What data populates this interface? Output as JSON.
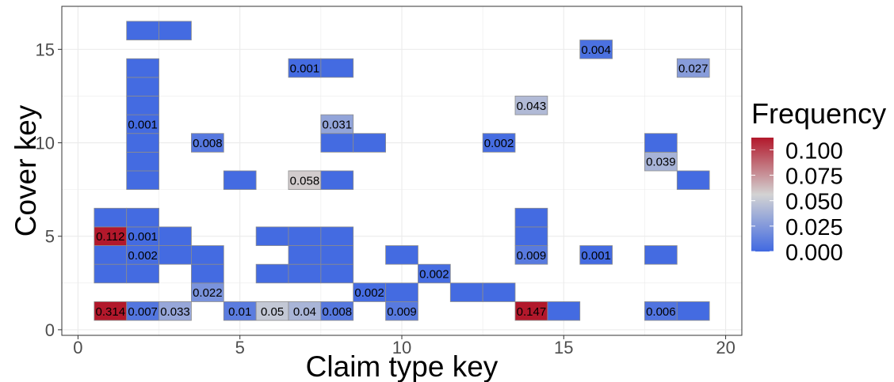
{
  "chart_data": {
    "type": "heatmap",
    "xlabel": "Claim type key",
    "ylabel": "Cover key",
    "xlim": [
      -0.5,
      20.5
    ],
    "ylim": [
      -0.3,
      17.3
    ],
    "x_ticks": [
      0,
      5,
      10,
      15,
      20
    ],
    "y_ticks": [
      0,
      5,
      10,
      15
    ],
    "grid": true,
    "legend": {
      "title": "Frequency",
      "position": "right",
      "ticks": [
        "0.100",
        "0.075",
        "0.050",
        "0.025",
        "0.000"
      ],
      "tick_values": [
        0.1,
        0.075,
        0.05,
        0.025,
        0.0
      ],
      "range": [
        0,
        0.112
      ],
      "colors": {
        "low": "#4169e1",
        "mid": "#d3d3d3",
        "high": "#b2182b"
      }
    },
    "cells": [
      {
        "x": 1,
        "y": 1,
        "value": 0.314,
        "label": "0.314"
      },
      {
        "x": 2,
        "y": 1,
        "value": 0.007,
        "label": "0.007"
      },
      {
        "x": 3,
        "y": 1,
        "value": 0.033,
        "label": "0.033"
      },
      {
        "x": 5,
        "y": 1,
        "value": 0.01,
        "label": "0.01"
      },
      {
        "x": 6,
        "y": 1,
        "value": 0.05,
        "label": "0.05"
      },
      {
        "x": 7,
        "y": 1,
        "value": 0.04,
        "label": "0.04"
      },
      {
        "x": 8,
        "y": 1,
        "value": 0.008,
        "label": "0.008"
      },
      {
        "x": 10,
        "y": 1,
        "value": 0.009,
        "label": "0.009"
      },
      {
        "x": 14,
        "y": 1,
        "value": 0.147,
        "label": "0.147"
      },
      {
        "x": 15,
        "y": 1,
        "value": 0.001,
        "label": ""
      },
      {
        "x": 18,
        "y": 1,
        "value": 0.006,
        "label": "0.006"
      },
      {
        "x": 19,
        "y": 1,
        "value": 0.001,
        "label": ""
      },
      {
        "x": 4,
        "y": 2,
        "value": 0.022,
        "label": "0.022"
      },
      {
        "x": 9,
        "y": 2,
        "value": 0.002,
        "label": "0.002"
      },
      {
        "x": 10,
        "y": 2,
        "value": 0.001,
        "label": ""
      },
      {
        "x": 12,
        "y": 2,
        "value": 0.001,
        "label": ""
      },
      {
        "x": 13,
        "y": 2,
        "value": 0.001,
        "label": ""
      },
      {
        "x": 1,
        "y": 3,
        "value": 0.001,
        "label": ""
      },
      {
        "x": 2,
        "y": 3,
        "value": 0.001,
        "label": ""
      },
      {
        "x": 4,
        "y": 3,
        "value": 0.001,
        "label": ""
      },
      {
        "x": 6,
        "y": 3,
        "value": 0.001,
        "label": ""
      },
      {
        "x": 7,
        "y": 3,
        "value": 0.001,
        "label": ""
      },
      {
        "x": 8,
        "y": 3,
        "value": 0.001,
        "label": ""
      },
      {
        "x": 11,
        "y": 3,
        "value": 0.002,
        "label": "0.002"
      },
      {
        "x": 1,
        "y": 4,
        "value": 0.001,
        "label": ""
      },
      {
        "x": 2,
        "y": 4,
        "value": 0.002,
        "label": "0.002"
      },
      {
        "x": 3,
        "y": 4,
        "value": 0.001,
        "label": ""
      },
      {
        "x": 4,
        "y": 4,
        "value": 0.001,
        "label": ""
      },
      {
        "x": 7,
        "y": 4,
        "value": 0.001,
        "label": ""
      },
      {
        "x": 8,
        "y": 4,
        "value": 0.001,
        "label": ""
      },
      {
        "x": 10,
        "y": 4,
        "value": 0.001,
        "label": ""
      },
      {
        "x": 14,
        "y": 4,
        "value": 0.009,
        "label": "0.009"
      },
      {
        "x": 16,
        "y": 4,
        "value": 0.001,
        "label": "0.001"
      },
      {
        "x": 18,
        "y": 4,
        "value": 0.001,
        "label": ""
      },
      {
        "x": 1,
        "y": 5,
        "value": 0.112,
        "label": "0.112"
      },
      {
        "x": 2,
        "y": 5,
        "value": 0.001,
        "label": "0.001"
      },
      {
        "x": 3,
        "y": 5,
        "value": 0.001,
        "label": ""
      },
      {
        "x": 6,
        "y": 5,
        "value": 0.001,
        "label": ""
      },
      {
        "x": 7,
        "y": 5,
        "value": 0.001,
        "label": ""
      },
      {
        "x": 8,
        "y": 5,
        "value": 0.001,
        "label": ""
      },
      {
        "x": 14,
        "y": 5,
        "value": 0.001,
        "label": ""
      },
      {
        "x": 1,
        "y": 6,
        "value": 0.001,
        "label": ""
      },
      {
        "x": 2,
        "y": 6,
        "value": 0.001,
        "label": ""
      },
      {
        "x": 14,
        "y": 6,
        "value": 0.001,
        "label": ""
      },
      {
        "x": 2,
        "y": 8,
        "value": 0.001,
        "label": ""
      },
      {
        "x": 5,
        "y": 8,
        "value": 0.001,
        "label": ""
      },
      {
        "x": 7,
        "y": 8,
        "value": 0.058,
        "label": "0.058"
      },
      {
        "x": 8,
        "y": 8,
        "value": 0.001,
        "label": ""
      },
      {
        "x": 19,
        "y": 8,
        "value": 0.001,
        "label": ""
      },
      {
        "x": 2,
        "y": 9,
        "value": 0.001,
        "label": ""
      },
      {
        "x": 18,
        "y": 9,
        "value": 0.039,
        "label": "0.039"
      },
      {
        "x": 2,
        "y": 10,
        "value": 0.001,
        "label": ""
      },
      {
        "x": 4,
        "y": 10,
        "value": 0.008,
        "label": "0.008"
      },
      {
        "x": 8,
        "y": 10,
        "value": 0.001,
        "label": ""
      },
      {
        "x": 9,
        "y": 10,
        "value": 0.001,
        "label": ""
      },
      {
        "x": 13,
        "y": 10,
        "value": 0.002,
        "label": "0.002"
      },
      {
        "x": 18,
        "y": 10,
        "value": 0.001,
        "label": ""
      },
      {
        "x": 2,
        "y": 11,
        "value": 0.001,
        "label": "0.001"
      },
      {
        "x": 8,
        "y": 11,
        "value": 0.031,
        "label": "0.031"
      },
      {
        "x": 2,
        "y": 12,
        "value": 0.001,
        "label": ""
      },
      {
        "x": 14,
        "y": 12,
        "value": 0.043,
        "label": "0.043"
      },
      {
        "x": 2,
        "y": 13,
        "value": 0.001,
        "label": ""
      },
      {
        "x": 2,
        "y": 14,
        "value": 0.001,
        "label": ""
      },
      {
        "x": 7,
        "y": 14,
        "value": 0.001,
        "label": "0.001"
      },
      {
        "x": 8,
        "y": 14,
        "value": 0.001,
        "label": ""
      },
      {
        "x": 19,
        "y": 14,
        "value": 0.027,
        "label": "0.027"
      },
      {
        "x": 16,
        "y": 15,
        "value": 0.004,
        "label": "0.004"
      },
      {
        "x": 2,
        "y": 16,
        "value": 0.001,
        "label": ""
      },
      {
        "x": 3,
        "y": 16,
        "value": 0.001,
        "label": ""
      }
    ]
  }
}
